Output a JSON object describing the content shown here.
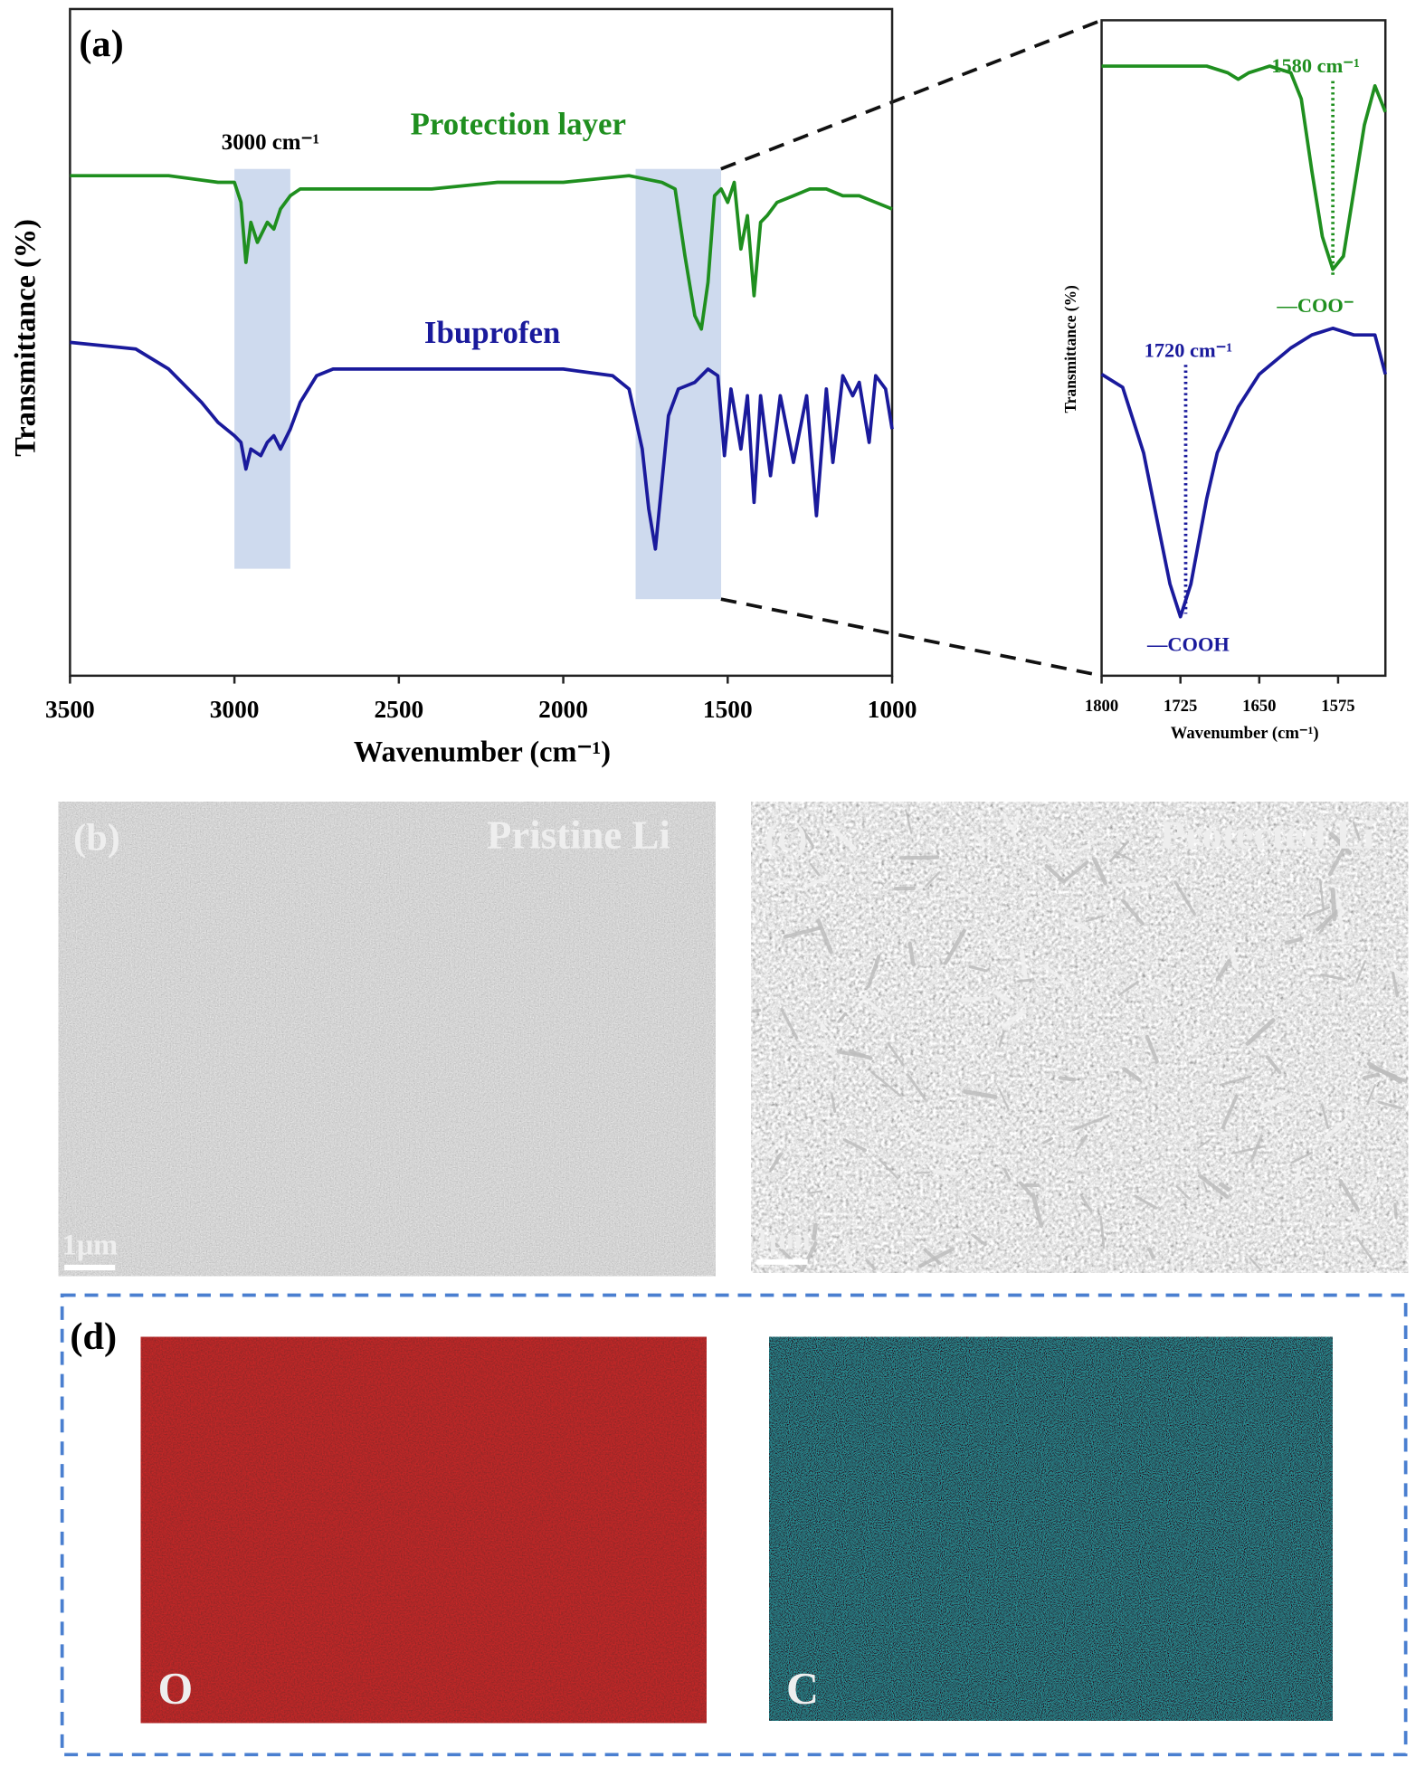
{
  "chart_data": [
    {
      "type": "line",
      "label": "(a)",
      "xlabel": "Wavenumber (cm⁻¹)",
      "ylabel": "Transmittance (%)",
      "xlim": [
        3500,
        1000
      ],
      "ylim": [
        0,
        100
      ],
      "xticks": [
        3500,
        3000,
        2500,
        2000,
        1500,
        1000
      ],
      "annotations": [
        "3000 cm⁻¹"
      ],
      "highlight_ranges": [
        [
          3000,
          2830
        ],
        [
          1780,
          1520
        ]
      ],
      "series": [
        {
          "name": "Protection layer",
          "color": "#1f8f1f",
          "x": [
            3500,
            3200,
            3050,
            3000,
            2980,
            2965,
            2950,
            2930,
            2900,
            2880,
            2860,
            2830,
            2800,
            2600,
            2400,
            2200,
            2000,
            1800,
            1700,
            1660,
            1630,
            1600,
            1580,
            1560,
            1540,
            1520,
            1500,
            1480,
            1460,
            1440,
            1420,
            1400,
            1380,
            1350,
            1300,
            1250,
            1200,
            1150,
            1100,
            1050,
            1000
          ],
          "values": [
            75,
            75,
            74,
            74,
            71,
            62,
            68,
            65,
            68,
            67,
            70,
            72,
            73,
            73,
            73,
            74,
            74,
            75,
            74,
            73,
            63,
            54,
            52,
            59,
            72,
            73,
            71,
            74,
            64,
            69,
            57,
            68,
            69,
            71,
            72,
            73,
            73,
            72,
            72,
            71,
            70
          ]
        },
        {
          "name": "Ibuprofen",
          "color": "#1a1a9c",
          "x": [
            3500,
            3300,
            3200,
            3100,
            3050,
            3000,
            2980,
            2965,
            2950,
            2920,
            2900,
            2880,
            2860,
            2830,
            2800,
            2750,
            2700,
            2500,
            2300,
            2000,
            1850,
            1800,
            1760,
            1740,
            1720,
            1700,
            1680,
            1650,
            1600,
            1560,
            1530,
            1510,
            1490,
            1460,
            1440,
            1420,
            1400,
            1370,
            1340,
            1300,
            1260,
            1230,
            1200,
            1180,
            1150,
            1120,
            1100,
            1070,
            1050,
            1020,
            1000
          ],
          "values": [
            50,
            49,
            46,
            41,
            38,
            36,
            35,
            31,
            34,
            33,
            35,
            36,
            34,
            37,
            41,
            45,
            46,
            46,
            46,
            46,
            45,
            43,
            34,
            25,
            19,
            29,
            39,
            43,
            44,
            46,
            45,
            33,
            43,
            34,
            42,
            26,
            42,
            30,
            42,
            32,
            42,
            24,
            43,
            32,
            45,
            42,
            44,
            35,
            45,
            43,
            37
          ]
        }
      ]
    },
    {
      "type": "line",
      "xlabel": "Wavenumber (cm⁻¹)",
      "ylabel": "Transmittance (%)",
      "xlim": [
        1800,
        1530
      ],
      "ylim": [
        0,
        100
      ],
      "xticks": [
        1800,
        1725,
        1650,
        1575
      ],
      "markers": [
        {
          "x": 1580,
          "label": "1580 cm⁻¹",
          "group": "—COO⁻"
        },
        {
          "x": 1720,
          "label": "1720 cm⁻¹",
          "group": "—COOH"
        }
      ],
      "series": [
        {
          "color": "#1f8f1f",
          "x": [
            1800,
            1750,
            1700,
            1680,
            1670,
            1660,
            1640,
            1620,
            1610,
            1600,
            1590,
            1580,
            1570,
            1560,
            1550,
            1540,
            1530
          ],
          "values": [
            93,
            93,
            93,
            92,
            91,
            92,
            93,
            92,
            88,
            77,
            67,
            62,
            64,
            74,
            84,
            90,
            86
          ]
        },
        {
          "color": "#1a1a9c",
          "x": [
            1800,
            1780,
            1760,
            1745,
            1735,
            1725,
            1715,
            1700,
            1690,
            1670,
            1650,
            1620,
            1600,
            1580,
            1560,
            1540,
            1530
          ],
          "values": [
            46,
            44,
            34,
            22,
            14,
            9,
            14,
            27,
            34,
            41,
            46,
            50,
            52,
            53,
            52,
            52,
            46
          ]
        }
      ]
    }
  ],
  "panels": {
    "b": {
      "label": "(b)",
      "title": "Pristine Li",
      "scale_bar": "1μm"
    },
    "c": {
      "label": "(c)",
      "title": "Protected Li",
      "scale_bar": "1μm"
    },
    "d": {
      "label": "(d)",
      "maps": [
        "O",
        "C"
      ]
    }
  }
}
